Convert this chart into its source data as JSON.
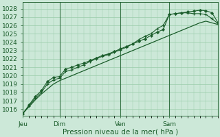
{
  "bg_color": "#cce8d8",
  "grid_color": "#99ccaa",
  "line_color": "#1a5c2a",
  "marker_color": "#1a5c2a",
  "xlabel": "Pression niveau de la mer( hPa )",
  "xlabel_fontsize": 7.5,
  "tick_fontsize": 6.5,
  "ylim": [
    1015.2,
    1028.8
  ],
  "yticks": [
    1016,
    1017,
    1018,
    1019,
    1020,
    1021,
    1022,
    1023,
    1024,
    1025,
    1026,
    1027,
    1028
  ],
  "day_labels": [
    "Jeu",
    "Dim",
    "Ven",
    "Sam"
  ],
  "day_positions": [
    0,
    36,
    96,
    144
  ],
  "xlim": [
    0,
    192
  ],
  "series_smooth": [
    [
      0,
      1015.5
    ],
    [
      6,
      1016.3
    ],
    [
      12,
      1017.1
    ],
    [
      18,
      1017.8
    ],
    [
      24,
      1018.4
    ],
    [
      30,
      1019.0
    ],
    [
      36,
      1019.4
    ],
    [
      42,
      1019.7
    ],
    [
      48,
      1020.0
    ],
    [
      54,
      1020.3
    ],
    [
      60,
      1020.6
    ],
    [
      66,
      1020.9
    ],
    [
      72,
      1021.2
    ],
    [
      78,
      1021.5
    ],
    [
      84,
      1021.8
    ],
    [
      90,
      1022.1
    ],
    [
      96,
      1022.4
    ],
    [
      102,
      1022.7
    ],
    [
      108,
      1023.0
    ],
    [
      114,
      1023.3
    ],
    [
      120,
      1023.6
    ],
    [
      126,
      1023.9
    ],
    [
      132,
      1024.2
    ],
    [
      138,
      1024.5
    ],
    [
      144,
      1024.8
    ],
    [
      150,
      1025.1
    ],
    [
      156,
      1025.4
    ],
    [
      162,
      1025.7
    ],
    [
      168,
      1026.0
    ],
    [
      174,
      1026.3
    ],
    [
      180,
      1026.5
    ],
    [
      186,
      1026.3
    ],
    [
      192,
      1026.1
    ]
  ],
  "series_diamond": [
    [
      0,
      1015.5
    ],
    [
      6,
      1016.5
    ],
    [
      12,
      1017.5
    ],
    [
      18,
      1018.2
    ],
    [
      24,
      1019.3
    ],
    [
      30,
      1019.8
    ],
    [
      36,
      1019.9
    ],
    [
      42,
      1020.8
    ],
    [
      48,
      1021.0
    ],
    [
      54,
      1021.3
    ],
    [
      60,
      1021.5
    ],
    [
      66,
      1021.8
    ],
    [
      72,
      1022.1
    ],
    [
      78,
      1022.4
    ],
    [
      84,
      1022.6
    ],
    [
      90,
      1022.9
    ],
    [
      96,
      1023.2
    ],
    [
      102,
      1023.5
    ],
    [
      108,
      1023.8
    ],
    [
      114,
      1024.1
    ],
    [
      120,
      1024.4
    ],
    [
      126,
      1024.8
    ],
    [
      132,
      1025.2
    ],
    [
      138,
      1025.5
    ],
    [
      144,
      1027.3
    ],
    [
      150,
      1027.4
    ],
    [
      156,
      1027.5
    ],
    [
      162,
      1027.6
    ],
    [
      168,
      1027.7
    ],
    [
      174,
      1027.8
    ],
    [
      180,
      1027.75
    ],
    [
      186,
      1027.5
    ],
    [
      192,
      1026.3
    ]
  ],
  "series_plus": [
    [
      0,
      1015.5
    ],
    [
      6,
      1016.4
    ],
    [
      12,
      1017.3
    ],
    [
      18,
      1018.0
    ],
    [
      24,
      1019.0
    ],
    [
      30,
      1019.5
    ],
    [
      36,
      1019.7
    ],
    [
      42,
      1020.5
    ],
    [
      48,
      1020.7
    ],
    [
      54,
      1021.0
    ],
    [
      60,
      1021.3
    ],
    [
      66,
      1021.7
    ],
    [
      72,
      1022.0
    ],
    [
      78,
      1022.3
    ],
    [
      84,
      1022.5
    ],
    [
      90,
      1022.8
    ],
    [
      96,
      1023.1
    ],
    [
      102,
      1023.4
    ],
    [
      108,
      1023.8
    ],
    [
      114,
      1024.3
    ],
    [
      120,
      1024.7
    ],
    [
      126,
      1025.0
    ],
    [
      132,
      1025.6
    ],
    [
      138,
      1026.0
    ],
    [
      144,
      1027.3
    ],
    [
      150,
      1027.4
    ],
    [
      156,
      1027.5
    ],
    [
      162,
      1027.5
    ],
    [
      168,
      1027.4
    ],
    [
      174,
      1027.4
    ],
    [
      180,
      1027.3
    ],
    [
      186,
      1026.8
    ],
    [
      192,
      1026.2
    ]
  ]
}
